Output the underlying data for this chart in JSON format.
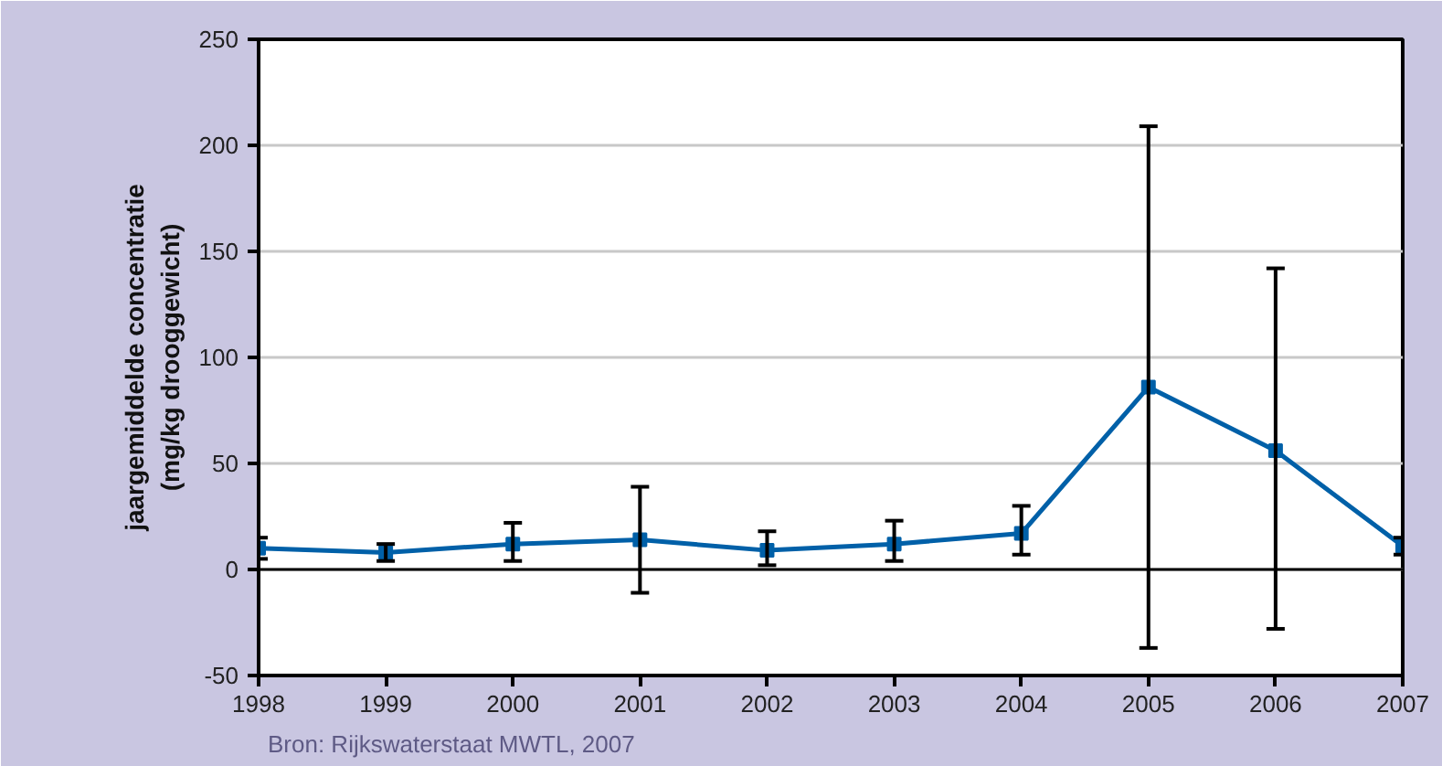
{
  "chart_data": {
    "type": "line",
    "ylabel": "jaargemiddelde concentratie\n(mg/kg drooggewicht)",
    "x": [
      1998,
      1999,
      2000,
      2001,
      2002,
      2003,
      2004,
      2005,
      2006,
      2007
    ],
    "series": [
      {
        "color": "#0060a8",
        "values": [
          10,
          8,
          12,
          14,
          9,
          12,
          17,
          86,
          56,
          11
        ],
        "errors": [
          [
            5,
            15
          ],
          [
            4,
            12
          ],
          [
            4,
            22
          ],
          [
            -11,
            39
          ],
          [
            2,
            18
          ],
          [
            4,
            23
          ],
          [
            7,
            30
          ],
          [
            -37,
            209
          ],
          [
            -28,
            142
          ],
          [
            7,
            15
          ]
        ]
      }
    ],
    "xlim": [
      1998,
      2007
    ],
    "xticks": [
      1998,
      1999,
      2000,
      2001,
      2002,
      2003,
      2004,
      2005,
      2006,
      2007
    ],
    "ylim": [
      -50,
      250
    ],
    "yticks": [
      -50,
      0,
      50,
      100,
      150,
      200,
      250
    ],
    "ref_lines": [
      {
        "axis": "y",
        "value": 0,
        "color": "#000000"
      }
    ],
    "grid": "y",
    "marker": "square",
    "line_style": "solid",
    "annotations": [
      "Bron: Rijkswaterstaat MWTL, 2007"
    ]
  }
}
